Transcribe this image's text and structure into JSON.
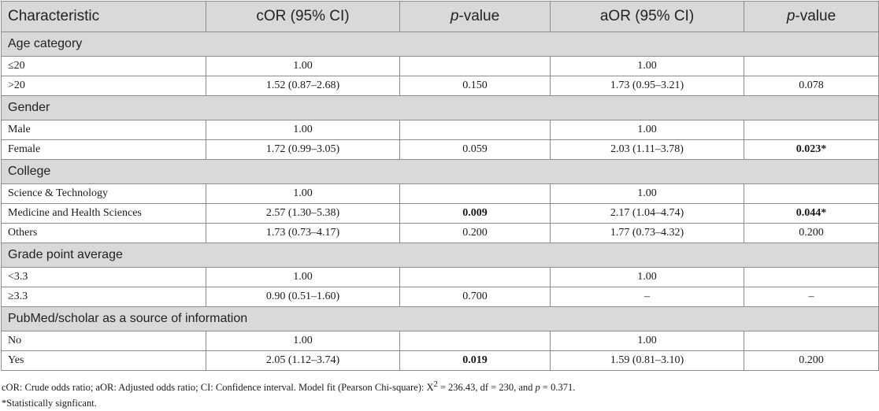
{
  "header": {
    "characteristic": "Characteristic",
    "cor": "cOR (95% CI)",
    "p_italic": "p",
    "p_rest": "-value",
    "aor": "aOR (95% CI)"
  },
  "sections": [
    {
      "title": "Age category",
      "rows": [
        {
          "label": "≤20",
          "cor": "1.00",
          "p1": "",
          "aor": "1.00",
          "p2": ""
        },
        {
          "label": ">20",
          "cor": "1.52 (0.87–2.68)",
          "p1": "0.150",
          "aor": "1.73 (0.95–3.21)",
          "p2": "0.078"
        }
      ]
    },
    {
      "title": "Gender",
      "rows": [
        {
          "label": "Male",
          "cor": "1.00",
          "p1": "",
          "aor": "1.00",
          "p2": ""
        },
        {
          "label": "Female",
          "cor": "1.72 (0.99–3.05)",
          "p1": "0.059",
          "aor": "2.03 (1.11–3.78)",
          "p2": "0.023*",
          "p2_bold": true
        }
      ]
    },
    {
      "title": "College",
      "rows": [
        {
          "label": "Science & Technology",
          "cor": "1.00",
          "p1": "",
          "aor": "1.00",
          "p2": ""
        },
        {
          "label": "Medicine and Health Sciences",
          "cor": "2.57 (1.30–5.38)",
          "p1": "0.009",
          "p1_bold": true,
          "aor": "2.17 (1.04–4.74)",
          "p2": "0.044*",
          "p2_bold": true
        },
        {
          "label": "Others",
          "cor": "1.73 (0.73–4.17)",
          "p1": "0.200",
          "aor": "1.77 (0.73–4.32)",
          "p2": "0.200"
        }
      ]
    },
    {
      "title": "Grade point average",
      "rows": [
        {
          "label": "<3.3",
          "cor": "1.00",
          "p1": "",
          "aor": "1.00",
          "p2": ""
        },
        {
          "label": "≥3.3",
          "cor": "0.90 (0.51–1.60)",
          "p1": "0.700",
          "aor": "–",
          "p2": "–"
        }
      ]
    },
    {
      "title": "PubMed/scholar as a source of information",
      "rows": [
        {
          "label": "No",
          "cor": "1.00",
          "p1": "",
          "aor": "1.00",
          "p2": ""
        },
        {
          "label": "Yes",
          "cor": "2.05 (1.12–3.74)",
          "p1": "0.019",
          "p1_bold": true,
          "aor": "1.59 (0.81–3.10)",
          "p2": "0.200"
        }
      ]
    }
  ],
  "footnotes": {
    "abbrev": "cOR: Crude odds ratio; aOR: Adjusted odds ratio; CI: Confidence interval. Model fit (Pearson Chi-square): X",
    "sup": "2",
    "fit": " = 236.43, df = 230, and ",
    "p": "p",
    "pval": " = 0.371.",
    "sig": "*Statistically signficant."
  }
}
